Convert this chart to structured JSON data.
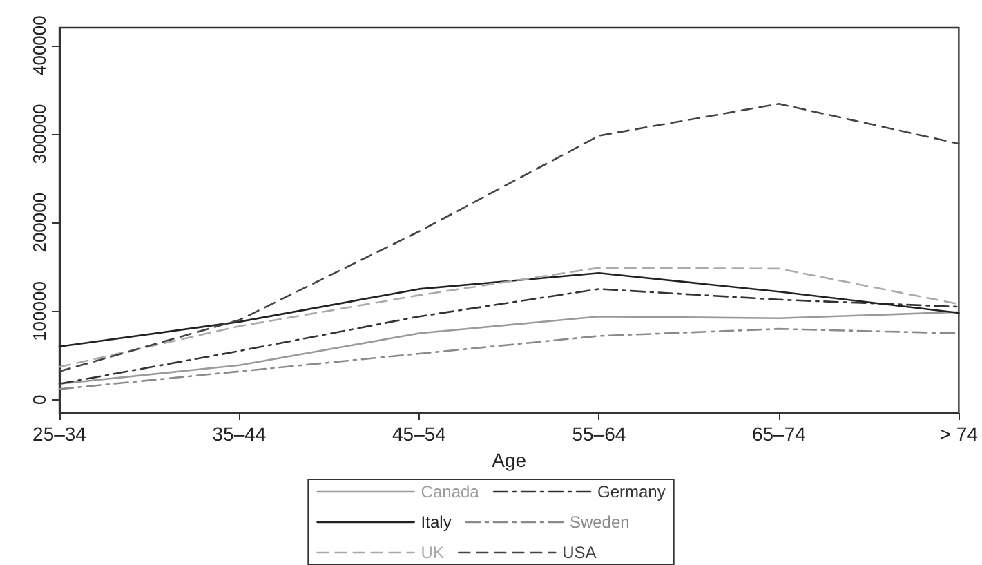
{
  "chart_data": {
    "type": "line",
    "xlabel": "Age",
    "categories": [
      "25–34",
      "35–44",
      "45–54",
      "55–64",
      "65–74",
      "> 74"
    ],
    "series": [
      {
        "name": "Canada",
        "color": "#9a9a9a",
        "line_style": "solid",
        "values": [
          18000,
          39000,
          75000,
          94000,
          92000,
          99000
        ]
      },
      {
        "name": "Germany",
        "color": "#333333",
        "line_style": "dashdot",
        "values": [
          18000,
          55000,
          94000,
          125000,
          113000,
          105000
        ]
      },
      {
        "name": "Italy",
        "color": "#222222",
        "line_style": "solid",
        "values": [
          60000,
          88000,
          125000,
          143000,
          122000,
          98000
        ]
      },
      {
        "name": "Sweden",
        "color": "#8a8a8a",
        "line_style": "dashdot",
        "values": [
          12000,
          32000,
          52000,
          72000,
          80000,
          75000
        ]
      },
      {
        "name": "UK",
        "color": "#aaaaaa",
        "line_style": "dashed",
        "values": [
          37000,
          83000,
          118000,
          149000,
          148000,
          108000
        ]
      },
      {
        "name": "USA",
        "color": "#444444",
        "line_style": "dashed",
        "values": [
          32000,
          90000,
          190000,
          298000,
          334000,
          289000
        ]
      }
    ],
    "ylim": [
      -15000,
      420000
    ],
    "yticks": [
      0,
      100000,
      200000,
      300000,
      400000
    ],
    "grid": false,
    "legend": "bottom",
    "marker": "none"
  }
}
